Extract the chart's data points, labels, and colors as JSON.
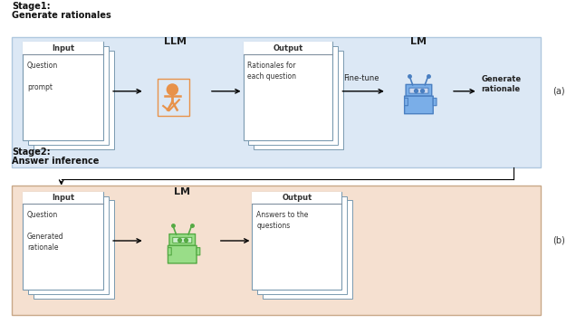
{
  "fig_width": 6.36,
  "fig_height": 3.58,
  "bg_color": "#ffffff",
  "stage1_title_line1": "Stage1:",
  "stage1_title_line2": "Generate rationales",
  "stage2_title_line1": "Stage2:",
  "stage2_title_line2": "Answer inference",
  "stage1_bg": "#dce8f5",
  "stage1_border": "#b0c8df",
  "stage2_bg": "#f5e0d0",
  "stage2_border": "#c8a888",
  "label_a": "(a)",
  "label_b": "(b)",
  "doc_border": "#7a9ab0",
  "doc_title_bar": "#8090a0",
  "orange_color": "#e8924a",
  "blue_robot_body": "#4a7fc1",
  "blue_robot_light": "#7aaee8",
  "green_robot_body": "#55aa44",
  "green_robot_light": "#99dd88"
}
